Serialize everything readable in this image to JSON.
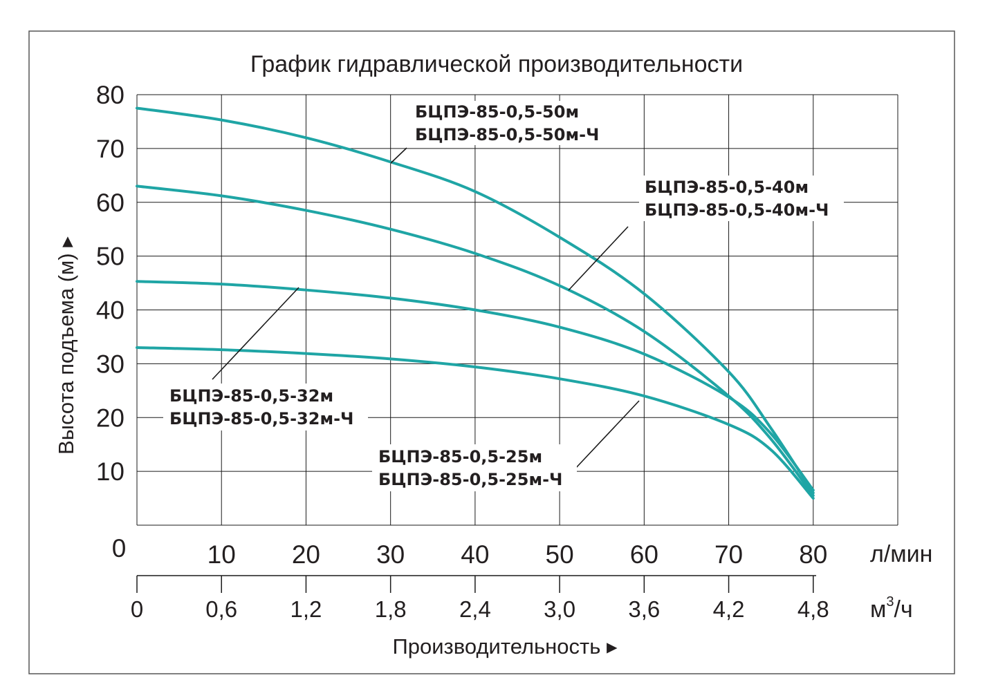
{
  "chart_data": {
    "type": "line",
    "title": "График гидравлической производительности",
    "ylabel": "Высота подъема (м) ▸",
    "xlabel": "Производительность ▸",
    "y_ticks": [
      "10",
      "20",
      "30",
      "40",
      "50",
      "60",
      "70",
      "80"
    ],
    "y_zero": "0",
    "ylim": [
      0,
      80
    ],
    "xlim": [
      0,
      90
    ],
    "x_ticks_primary": [
      "10",
      "20",
      "30",
      "40",
      "50",
      "60",
      "70",
      "80"
    ],
    "x_unit_primary": "л/мин",
    "x_ticks_secondary": [
      "0",
      "0,6",
      "1,2",
      "1,8",
      "2,4",
      "3,0",
      "3,6",
      "4,2",
      "4,8"
    ],
    "x_unit_secondary_base": "м",
    "x_unit_secondary_sup": "3",
    "x_unit_secondary_tail": "/ч",
    "grid": true,
    "color": "#1fa5a5",
    "series": [
      {
        "name": "БЦПЭ-85-0,5-50м",
        "name2": "БЦПЭ-85-0,5-50м-Ч",
        "x": [
          0,
          10,
          20,
          30,
          40,
          50,
          60,
          70,
          75,
          80
        ],
        "y": [
          77.5,
          75.3,
          72,
          67.5,
          62,
          53.5,
          43,
          28.5,
          18,
          6
        ]
      },
      {
        "name": "БЦПЭ-85-0,5-40м",
        "name2": "БЦПЭ-85-0,5-40м-Ч",
        "x": [
          0,
          10,
          20,
          30,
          40,
          50,
          60,
          70,
          75,
          80
        ],
        "y": [
          63,
          61.2,
          58.5,
          55,
          50.5,
          44.5,
          36,
          24,
          16,
          5.5
        ]
      },
      {
        "name": "БЦПЭ-85-0,5-32м",
        "name2": "БЦПЭ-85-0,5-32м-Ч",
        "x": [
          0,
          10,
          20,
          30,
          40,
          50,
          60,
          70,
          75,
          80
        ],
        "y": [
          45.3,
          44.8,
          43.7,
          42.2,
          40,
          36.8,
          31.8,
          23.8,
          17,
          6.5
        ]
      },
      {
        "name": "БЦПЭ-85-0,5-25м",
        "name2": "БЦПЭ-85-0,5-25м-Ч",
        "x": [
          0,
          10,
          20,
          30,
          40,
          50,
          60,
          70,
          75,
          80
        ],
        "y": [
          33,
          32.6,
          31.9,
          30.9,
          29.4,
          27.2,
          24,
          18.7,
          14,
          5
        ]
      }
    ]
  }
}
